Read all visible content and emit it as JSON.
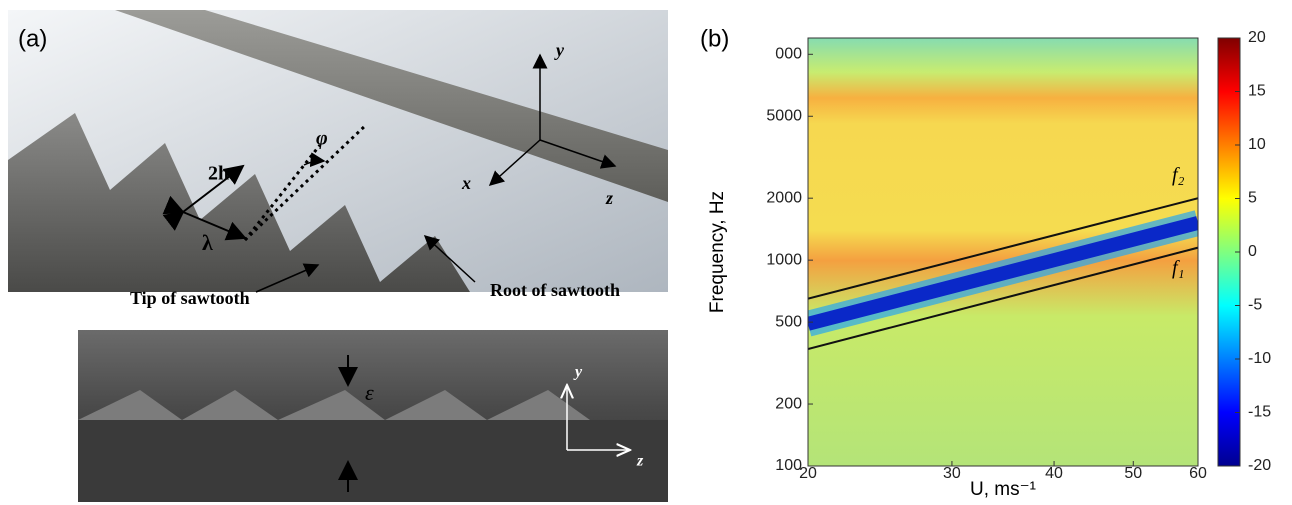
{
  "panel_a": {
    "label": "(a)",
    "labels": {
      "thickness": "2h",
      "angle": "φ",
      "wavelength": "λ",
      "axis_y": "y",
      "axis_x": "x",
      "axis_z": "z",
      "tip": "Tip of sawtooth",
      "root": "Root of sawtooth",
      "epsilon": "ε",
      "inset_y": "y",
      "inset_z": "z"
    }
  },
  "chart_data": {
    "type": "heatmap",
    "panel_label": "(b)",
    "x_label": "U, ms⁻¹",
    "y_label": "Frequency, Hz",
    "x_scale": "log",
    "y_scale": "log",
    "xlim": [
      20,
      60
    ],
    "xticks": [
      20,
      30,
      40,
      50,
      60
    ],
    "ylim": [
      100,
      12000
    ],
    "yticks": [
      100,
      200,
      500,
      1000,
      2000,
      5000,
      {
        "value": 10000,
        "label": "000"
      }
    ],
    "x": [
      20,
      60
    ],
    "series": [
      {
        "name": "f₂",
        "color": "#111111",
        "values": [
          650,
          2000
        ]
      },
      {
        "name": "f₁",
        "color": "#111111",
        "values": [
          370,
          1150
        ]
      }
    ],
    "colorbar": {
      "lim": [
        -20,
        20
      ],
      "ticks": [
        20,
        15,
        10,
        5,
        0,
        -5,
        -10,
        -15,
        -20
      ]
    }
  }
}
